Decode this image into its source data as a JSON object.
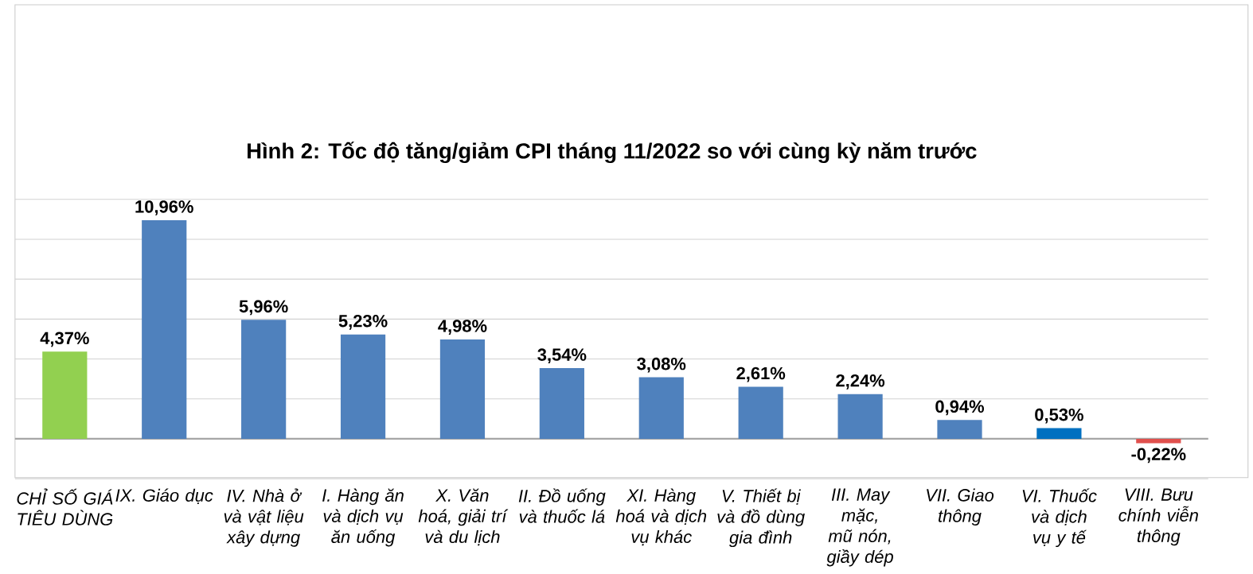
{
  "chart_data": {
    "type": "bar",
    "title": "Hình 2: Tốc độ tăng/giảm CPI tháng 11/2022 so với cùng kỳ năm trước",
    "categories": [
      "CHỈ SỐ GIÁ TIÊU DÙNG",
      "IX. Giáo dục",
      "IV. Nhà ở và vật liệu xây dựng",
      "I. Hàng ăn và dịch vụ ăn uống",
      "X. Văn hoá, giải trí và du lịch",
      "II. Đồ uống và thuốc lá",
      "XI. Hàng hoá và dịch vụ khác",
      "V. Thiết bị và đồ dùng gia đình",
      "III. May mặc, mũ nón, giầy dép",
      "VII. Giao thông",
      "VI. Thuốc và dịch vụ y tế",
      "VIII. Bưu chính viễn thông"
    ],
    "values": [
      4.37,
      10.96,
      5.96,
      5.23,
      4.98,
      3.54,
      3.08,
      2.61,
      2.24,
      0.94,
      0.53,
      -0.22
    ],
    "value_labels": [
      "4,37%",
      "10,96%",
      "5,96%",
      "5,23%",
      "4,98%",
      "3,54%",
      "3,08%",
      "2,61%",
      "2,24%",
      "0,94%",
      "0,53%",
      "-0,22%"
    ],
    "colors": [
      "#92d050",
      "#4f81bd",
      "#4f81bd",
      "#4f81bd",
      "#4f81bd",
      "#4f81bd",
      "#4f81bd",
      "#4f81bd",
      "#4f81bd",
      "#4f81bd",
      "#0070c0",
      "#e0504d"
    ],
    "ylim": [
      -2,
      12
    ],
    "yticks": [
      {
        "value": -2,
        "label": null
      },
      {
        "value": 0,
        "label": null
      },
      {
        "value": 2,
        "label": null
      },
      {
        "value": 4,
        "label": null
      },
      {
        "value": 6,
        "label": null
      },
      {
        "value": 8,
        "label": null
      },
      {
        "value": 10,
        "label": null
      },
      {
        "value": 12,
        "label": null
      }
    ],
    "grid": "y",
    "tick_labels": "x"
  }
}
